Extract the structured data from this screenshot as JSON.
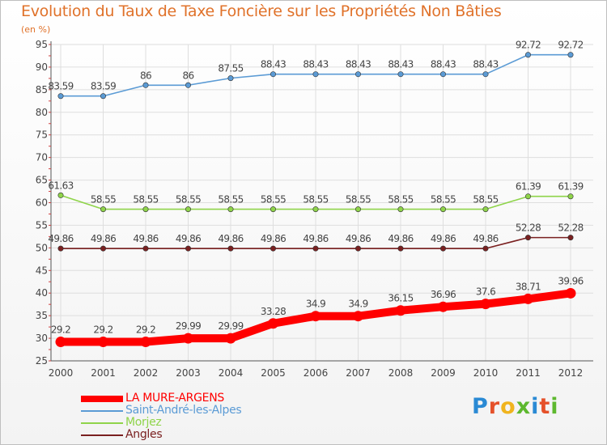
{
  "title": "Evolution du Taux de Taxe Foncière sur les Propriétés Non Bâties",
  "subtitle": "(en %)",
  "logo": {
    "letters": [
      "P",
      "r",
      "o",
      "x",
      "i",
      "t",
      "i"
    ],
    "colors": [
      "#2a8ad4",
      "#e5512a",
      "#f0b41e",
      "#5db82e",
      "#2a8ad4",
      "#e5512a",
      "#5db82e"
    ]
  },
  "chart_data": {
    "type": "line",
    "x": [
      "2000",
      "2001",
      "2002",
      "2003",
      "2004",
      "2005",
      "2006",
      "2007",
      "2008",
      "2009",
      "2010",
      "2011",
      "2012"
    ],
    "ylim": [
      25,
      95
    ],
    "yticks": [
      "25",
      "30",
      "35",
      "40",
      "45",
      "50",
      "55",
      "60",
      "65",
      "70",
      "75",
      "80",
      "85",
      "90",
      "95"
    ],
    "grid": true,
    "legend_position": "bottom-left",
    "series": [
      {
        "name": "LA MURE-ARGENS",
        "color": "#ff0000",
        "values": [
          29.2,
          29.2,
          29.2,
          29.99,
          29.99,
          33.28,
          34.9,
          34.9,
          36.15,
          36.96,
          37.6,
          38.71,
          39.96
        ],
        "labels": [
          "29.2",
          "29.2",
          "29.2",
          "29.99",
          "29.99",
          "33.28",
          "34.9",
          "34.9",
          "36.15",
          "36.96",
          "37.6",
          "38.71",
          "39.96"
        ]
      },
      {
        "name": "Saint-André-les-Alpes",
        "color": "#5b9bd5",
        "values": [
          83.59,
          83.59,
          86,
          86,
          87.55,
          88.43,
          88.43,
          88.43,
          88.43,
          88.43,
          88.43,
          92.72,
          92.72
        ],
        "labels": [
          "83.59",
          "83.59",
          "86",
          "86",
          "87.55",
          "88.43",
          "88.43",
          "88.43",
          "88.43",
          "88.43",
          "88.43",
          "92.72",
          "92.72"
        ]
      },
      {
        "name": "Morjez",
        "color": "#8fd44a",
        "values": [
          61.63,
          58.55,
          58.55,
          58.55,
          58.55,
          58.55,
          58.55,
          58.55,
          58.55,
          58.55,
          58.55,
          61.39,
          61.39
        ],
        "labels": [
          "61.63",
          "58.55",
          "58.55",
          "58.55",
          "58.55",
          "58.55",
          "58.55",
          "58.55",
          "58.55",
          "58.55",
          "58.55",
          "61.39",
          "61.39"
        ]
      },
      {
        "name": "Angles",
        "color": "#7a2020",
        "values": [
          49.86,
          49.86,
          49.86,
          49.86,
          49.86,
          49.86,
          49.86,
          49.86,
          49.86,
          49.86,
          49.86,
          52.28,
          52.28
        ],
        "labels": [
          "49.86",
          "49.86",
          "49.86",
          "49.86",
          "49.86",
          "49.86",
          "49.86",
          "49.86",
          "49.86",
          "49.86",
          "49.86",
          "52.28",
          "52.28"
        ]
      }
    ]
  }
}
